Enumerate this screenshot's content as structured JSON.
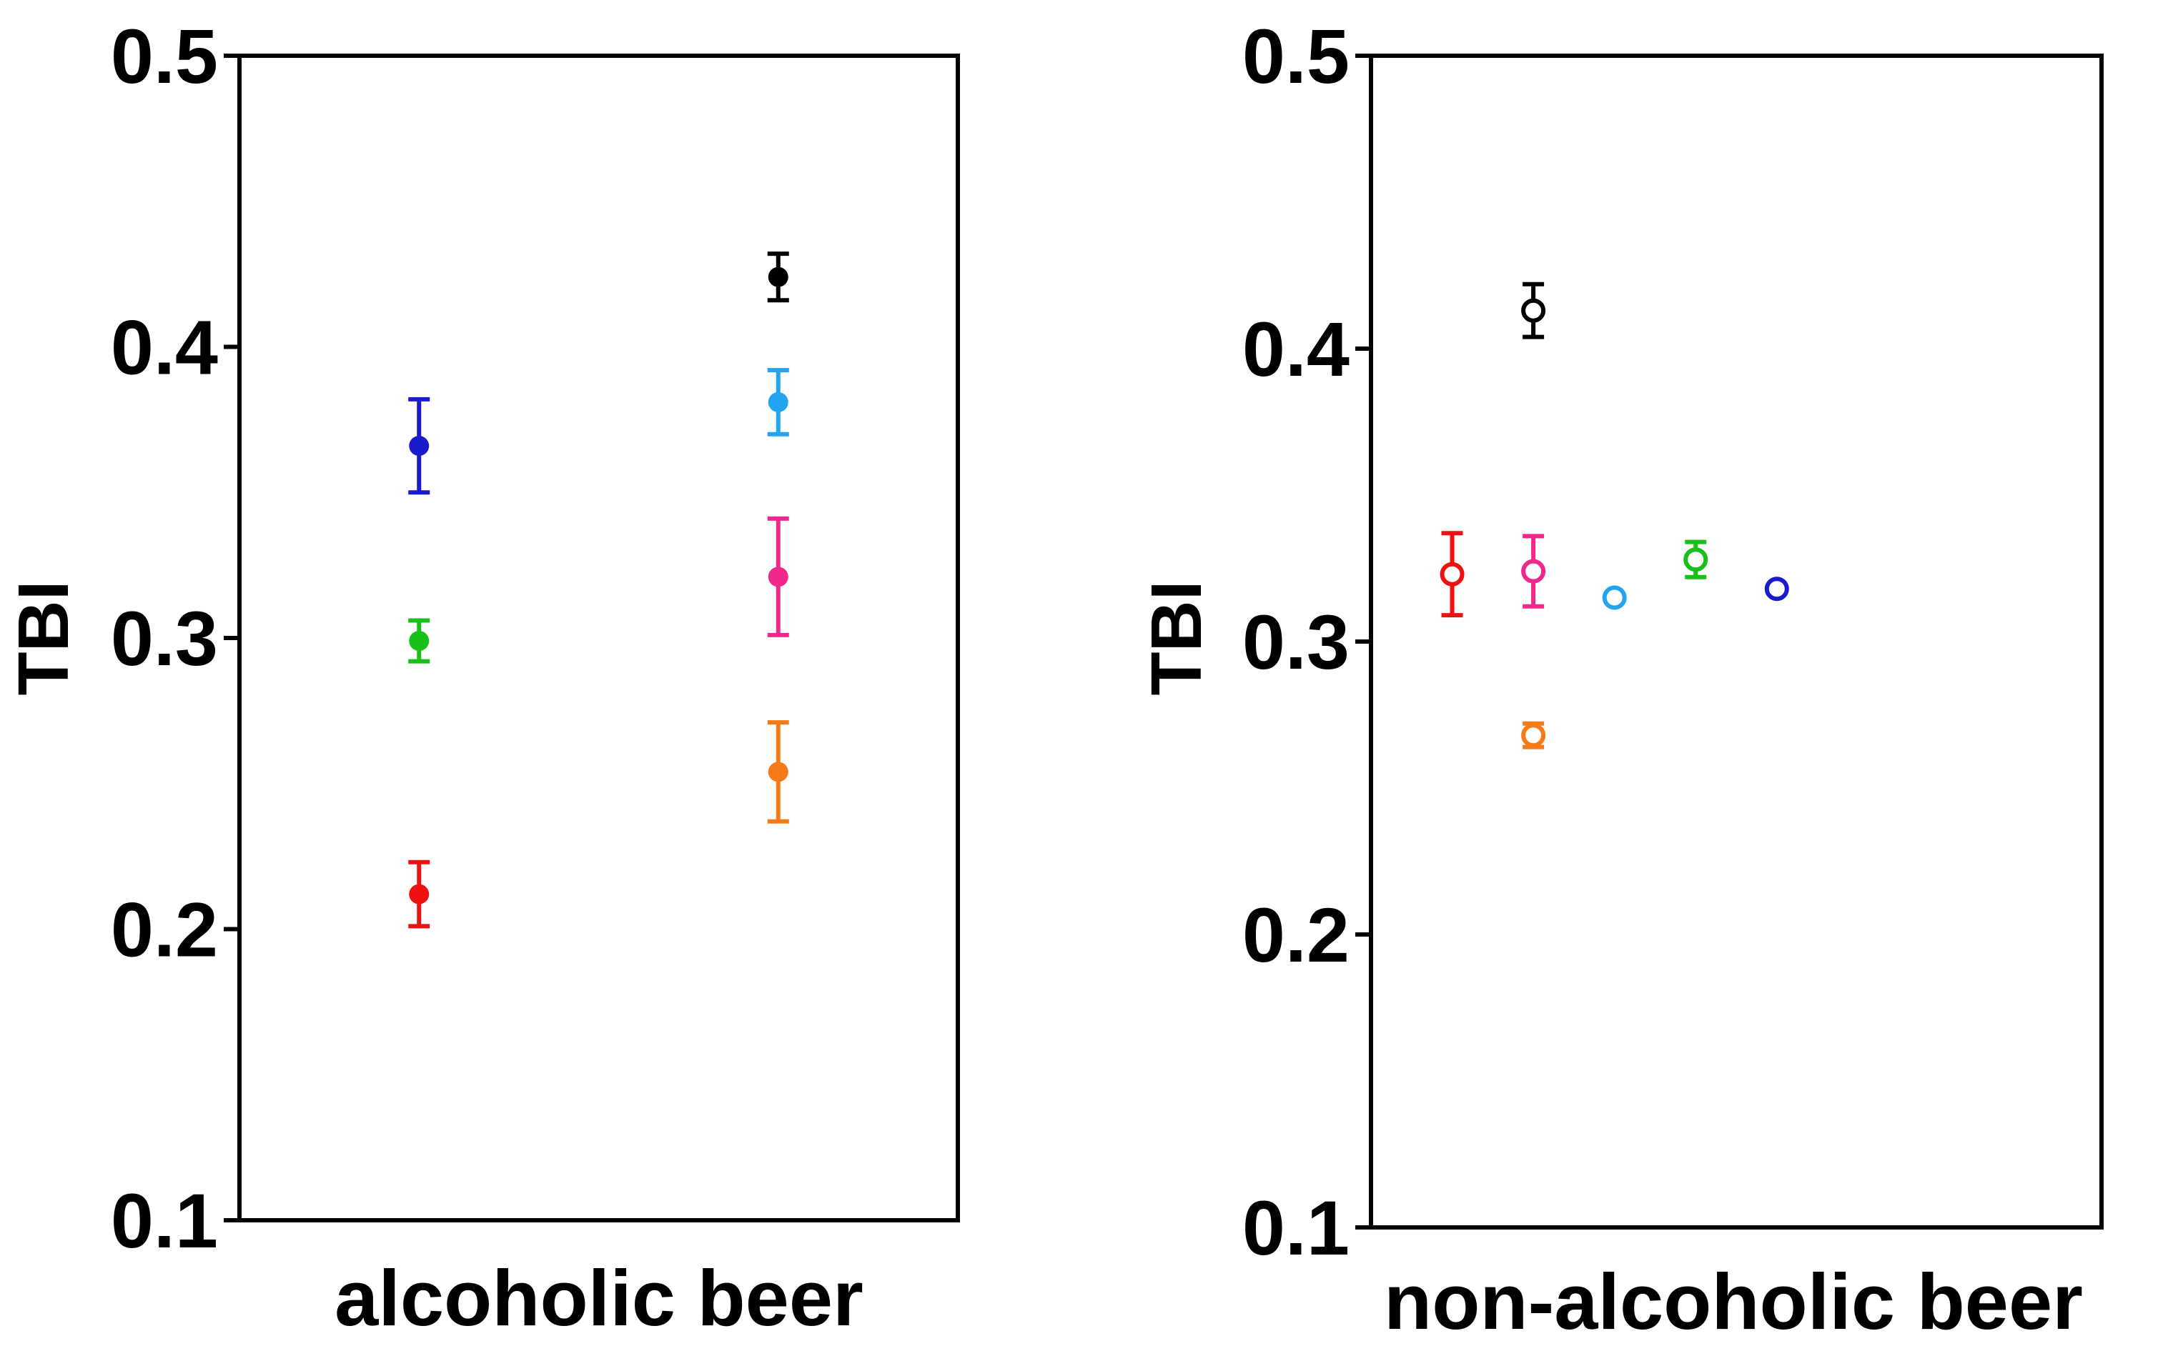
{
  "chart_data": [
    {
      "type": "scatter",
      "title": "",
      "ylabel": "TBI",
      "xlabel": "alcoholic beer",
      "ylim": [
        0.1,
        0.5
      ],
      "xlim": [
        0,
        4
      ],
      "yticks": [
        "0.1",
        "0.2",
        "0.3",
        "0.4",
        "0.5"
      ],
      "grid": false,
      "marker": "filled",
      "points": [
        {
          "x": 1,
          "y": 0.366,
          "err": 0.016,
          "color": "#1a1acc"
        },
        {
          "x": 1,
          "y": 0.299,
          "err": 0.007,
          "color": "#18c018"
        },
        {
          "x": 1,
          "y": 0.212,
          "err": 0.011,
          "color": "#ee1111"
        },
        {
          "x": 3,
          "y": 0.424,
          "err": 0.008,
          "color": "#000000"
        },
        {
          "x": 3,
          "y": 0.381,
          "err": 0.011,
          "color": "#22a4f0"
        },
        {
          "x": 3,
          "y": 0.321,
          "err": 0.02,
          "color": "#f0288c"
        },
        {
          "x": 3,
          "y": 0.254,
          "err": 0.017,
          "color": "#f77a18"
        }
      ]
    },
    {
      "type": "scatter",
      "title": "",
      "ylabel": "TBI",
      "xlabel": "non-alcoholic beer",
      "ylim": [
        0.1,
        0.5
      ],
      "xlim": [
        0,
        9
      ],
      "yticks": [
        "0.1",
        "0.2",
        "0.3",
        "0.4",
        "0.5"
      ],
      "grid": false,
      "marker": "open",
      "points": [
        {
          "x": 2,
          "y": 0.413,
          "err": 0.009,
          "color": "#000000"
        },
        {
          "x": 1,
          "y": 0.323,
          "err": 0.014,
          "color": "#ee1111"
        },
        {
          "x": 2,
          "y": 0.324,
          "err": 0.012,
          "color": "#f0288c"
        },
        {
          "x": 2,
          "y": 0.268,
          "err": 0.004,
          "color": "#f77a18"
        },
        {
          "x": 3,
          "y": 0.315,
          "err": 0,
          "color": "#22a4f0"
        },
        {
          "x": 4,
          "y": 0.328,
          "err": 0.006,
          "color": "#18c018"
        },
        {
          "x": 5,
          "y": 0.318,
          "err": 0,
          "color": "#1a1acc"
        }
      ]
    }
  ]
}
